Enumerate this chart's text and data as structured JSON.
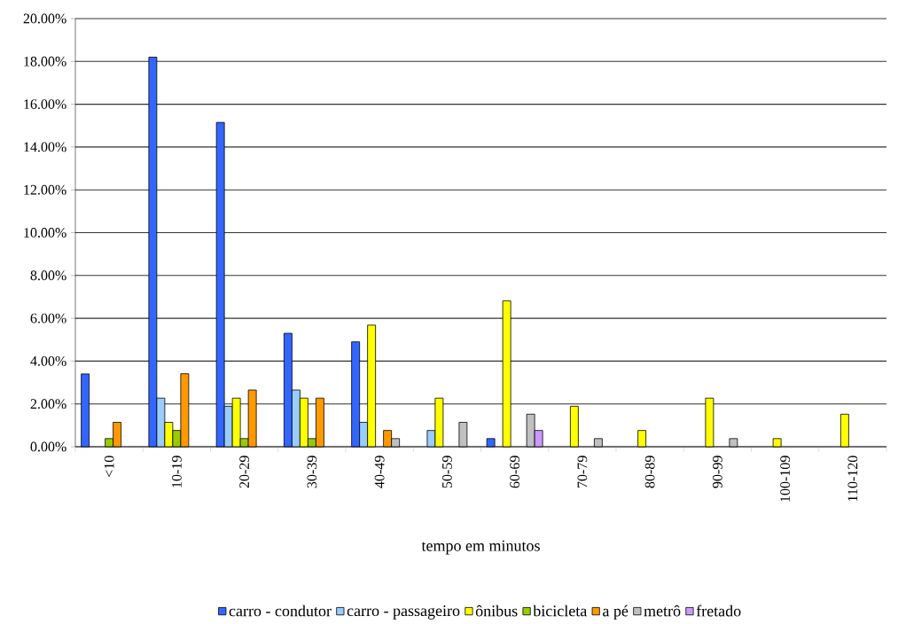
{
  "chart_data": {
    "type": "bar",
    "xlabel": "tempo em minutos",
    "categories": [
      "<10",
      "10-19",
      "20-29",
      "30-39",
      "40-49",
      "50-59",
      "60-69",
      "70-79",
      "80-89",
      "90-99",
      "100-109",
      "110-120"
    ],
    "series": [
      {
        "name": "carro - condutor",
        "color": "#3366ff",
        "values": [
          3.4,
          18.2,
          15.15,
          5.3,
          4.9,
          null,
          0.38,
          null,
          null,
          null,
          null,
          null
        ]
      },
      {
        "name": "carro - passageiro",
        "color": "#99ccff",
        "values": [
          null,
          2.27,
          1.89,
          2.65,
          1.14,
          0.76,
          null,
          null,
          null,
          null,
          null,
          null
        ]
      },
      {
        "name": "ônibus",
        "color": "#ffff00",
        "values": [
          null,
          1.14,
          2.27,
          2.27,
          5.68,
          2.27,
          6.82,
          1.89,
          0.76,
          2.27,
          0.38,
          1.52
        ]
      },
      {
        "name": "bicicleta",
        "color": "#99cc00",
        "values": [
          0.38,
          0.76,
          0.38,
          0.38,
          null,
          null,
          null,
          null,
          null,
          null,
          null,
          null
        ]
      },
      {
        "name": "a pé",
        "color": "#ff9900",
        "values": [
          1.14,
          3.41,
          2.65,
          2.27,
          0.76,
          null,
          null,
          null,
          null,
          null,
          null,
          null
        ]
      },
      {
        "name": "metrô",
        "color": "#c0c0c0",
        "values": [
          null,
          null,
          null,
          null,
          0.38,
          1.14,
          1.52,
          0.38,
          null,
          0.38,
          null,
          null
        ]
      },
      {
        "name": "fretado",
        "color": "#cc99ff",
        "values": [
          null,
          null,
          null,
          null,
          null,
          null,
          0.76,
          null,
          null,
          null,
          null,
          null
        ]
      }
    ],
    "ylim": [
      0,
      20
    ],
    "yticks": [
      {
        "value": 0,
        "label": "0.00%"
      },
      {
        "value": 2,
        "label": "2.00%"
      },
      {
        "value": 4,
        "label": "4.00%"
      },
      {
        "value": 6,
        "label": "6.00%"
      },
      {
        "value": 8,
        "label": "8.00%"
      },
      {
        "value": 10,
        "label": "10.00%"
      },
      {
        "value": 12,
        "label": "12.00%"
      },
      {
        "value": 14,
        "label": "14.00%"
      },
      {
        "value": 16,
        "label": "16.00%"
      },
      {
        "value": 18,
        "label": "18.00%"
      },
      {
        "value": 20,
        "label": "20.00%"
      }
    ],
    "grid": "y",
    "legend": "bottom"
  }
}
